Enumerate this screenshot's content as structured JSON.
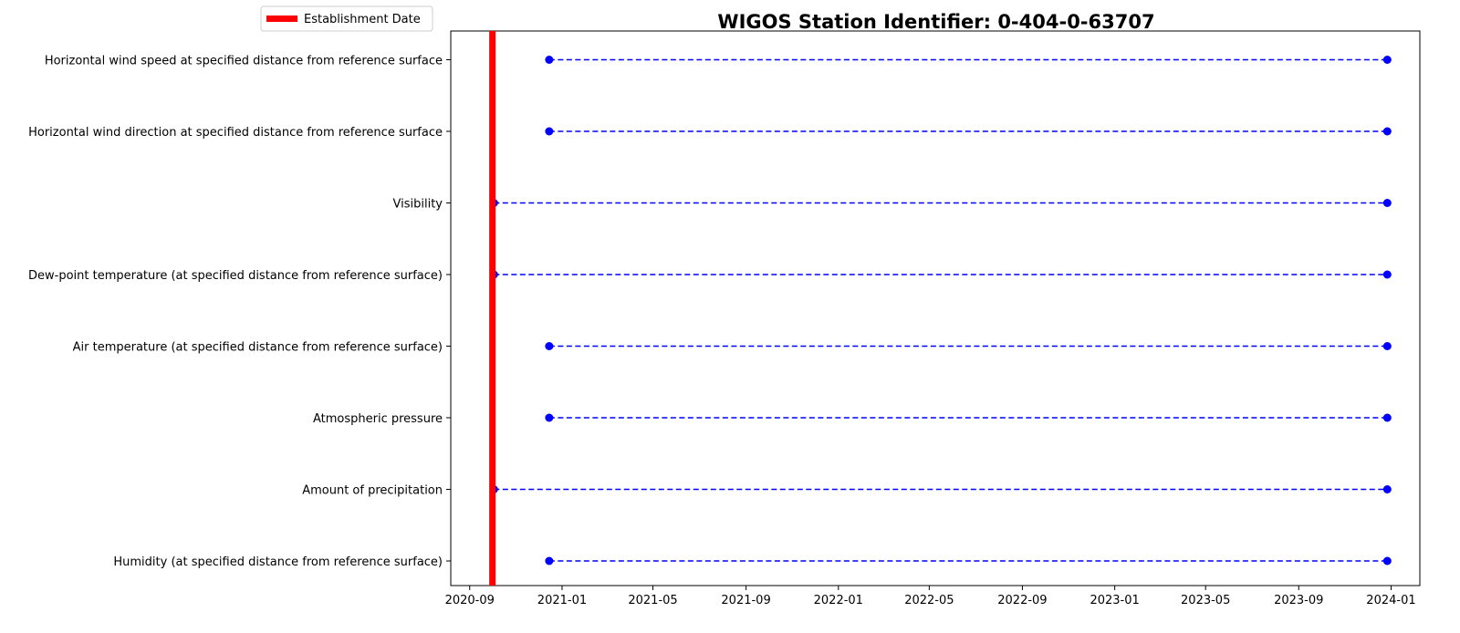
{
  "chart_data": {
    "type": "timeline",
    "title": "WIGOS Station Identifier: 0-404-0-63707",
    "xlabel": "",
    "ylabel": "",
    "grid": false,
    "legend": {
      "placement": "top-left, outside axes",
      "entries": [
        {
          "label": "Establishment Date",
          "color": "#ff0000",
          "style": "thick-line"
        }
      ]
    },
    "xlim": [
      "2020-08-07",
      "2024-02-08"
    ],
    "x_ticks": [
      "2020-09",
      "2021-01",
      "2021-05",
      "2021-09",
      "2022-01",
      "2022-05",
      "2022-09",
      "2023-01",
      "2023-05",
      "2023-09",
      "2024-01"
    ],
    "establishment_date": "2020-10-01",
    "categories": [
      "Horizontal wind speed at specified distance from reference surface",
      "Horizontal wind direction at specified distance from reference surface",
      "Visibility",
      "Dew-point temperature (at specified distance from reference surface)",
      "Air temperature (at specified distance from reference surface)",
      "Atmospheric pressure",
      "Amount of precipitation",
      "Humidity  (at specified distance from reference surface)"
    ],
    "series": [
      {
        "start": "2020-12-15",
        "end": "2023-12-27"
      },
      {
        "start": "2020-12-15",
        "end": "2023-12-27"
      },
      {
        "start": "2020-10-03",
        "end": "2023-12-27"
      },
      {
        "start": "2020-10-03",
        "end": "2023-12-27"
      },
      {
        "start": "2020-12-15",
        "end": "2023-12-27"
      },
      {
        "start": "2020-12-15",
        "end": "2023-12-27"
      },
      {
        "start": "2020-10-03",
        "end": "2023-12-27"
      },
      {
        "start": "2020-12-15",
        "end": "2023-12-27"
      }
    ],
    "colors": {
      "segment": "#0000ff",
      "establishment": "#ff0000"
    }
  }
}
